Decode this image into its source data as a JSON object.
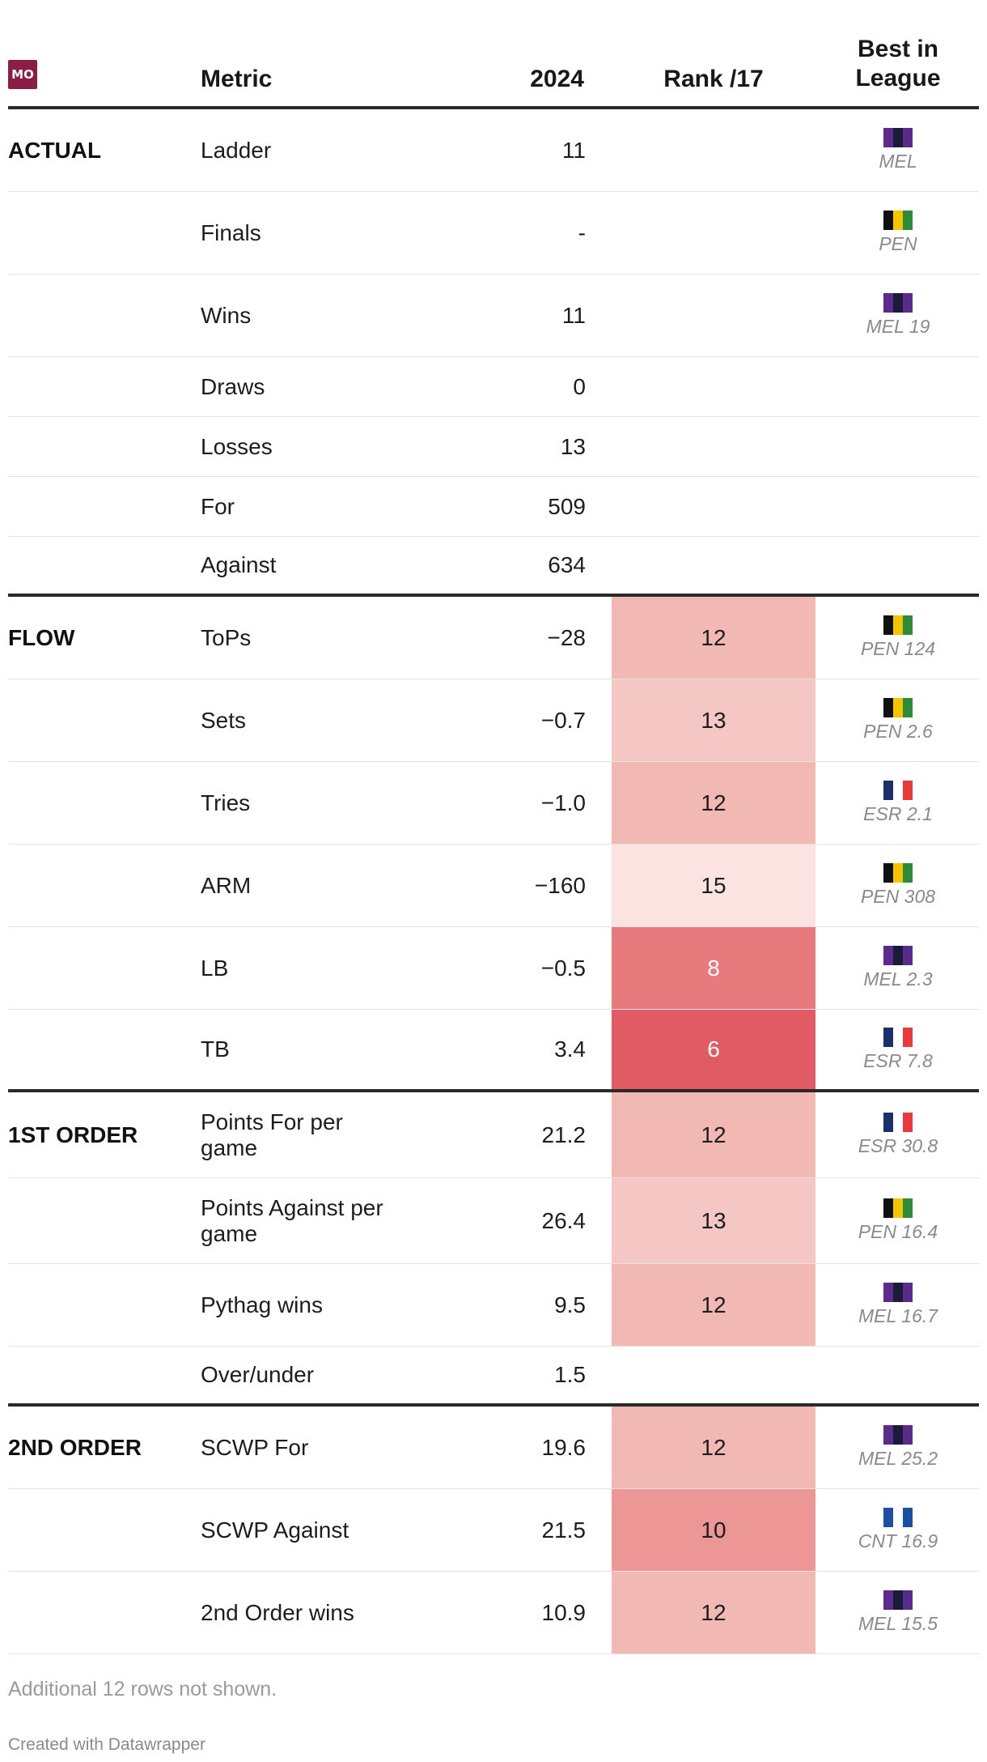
{
  "chart_data": {
    "type": "table",
    "team_logo_text": "MO",
    "columns": {
      "metric": "Metric",
      "year": "2024",
      "rank": "Rank /17",
      "best": "Best in League"
    },
    "rank_scale_colors": {
      "6": "#e05b63",
      "8": "#e77a7c",
      "10": "#ec9795",
      "12": "#f2b8b4",
      "13": "#f5c7c4",
      "15": "#fae3e0"
    },
    "team_colors": {
      "MEL": [
        "#5b2a8a",
        "#1a1a3a",
        "#5b2a8a"
      ],
      "PEN": [
        "#111111",
        "#f4c400",
        "#2e8b3a"
      ],
      "ESR": [
        "#1c2f6b",
        "#ffffff",
        "#e83a3a"
      ],
      "CNT": [
        "#1c4fa0",
        "#ffffff",
        "#1c4fa0"
      ]
    },
    "groups": [
      {
        "name": "ACTUAL",
        "rows": [
          {
            "metric": "Ladder",
            "value": "11",
            "rank": null,
            "best_team": "MEL",
            "best_label": "MEL"
          },
          {
            "metric": "Finals",
            "value": "-",
            "rank": null,
            "best_team": "PEN",
            "best_label": "PEN"
          },
          {
            "metric": "Wins",
            "value": "11",
            "rank": null,
            "best_team": "MEL",
            "best_label": "MEL 19"
          },
          {
            "metric": "Draws",
            "value": "0",
            "rank": null,
            "best_team": null,
            "best_label": ""
          },
          {
            "metric": "Losses",
            "value": "13",
            "rank": null,
            "best_team": null,
            "best_label": ""
          },
          {
            "metric": "For",
            "value": "509",
            "rank": null,
            "best_team": null,
            "best_label": ""
          },
          {
            "metric": "Against",
            "value": "634",
            "rank": null,
            "best_team": null,
            "best_label": ""
          }
        ]
      },
      {
        "name": "FLOW",
        "rows": [
          {
            "metric": "ToPs",
            "value": "−28",
            "rank": 12,
            "best_team": "PEN",
            "best_label": "PEN 124"
          },
          {
            "metric": "Sets",
            "value": "−0.7",
            "rank": 13,
            "best_team": "PEN",
            "best_label": "PEN 2.6"
          },
          {
            "metric": "Tries",
            "value": "−1.0",
            "rank": 12,
            "best_team": "ESR",
            "best_label": "ESR 2.1"
          },
          {
            "metric": "ARM",
            "value": "−160",
            "rank": 15,
            "best_team": "PEN",
            "best_label": "PEN 308"
          },
          {
            "metric": "LB",
            "value": "−0.5",
            "rank": 8,
            "best_team": "MEL",
            "best_label": "MEL 2.3"
          },
          {
            "metric": "TB",
            "value": "3.4",
            "rank": 6,
            "best_team": "ESR",
            "best_label": "ESR 7.8"
          }
        ]
      },
      {
        "name": "1ST ORDER",
        "rows": [
          {
            "metric": "Points For per game",
            "value": "21.2",
            "rank": 12,
            "best_team": "ESR",
            "best_label": "ESR 30.8"
          },
          {
            "metric": "Points Against per game",
            "value": "26.4",
            "rank": 13,
            "best_team": "PEN",
            "best_label": "PEN 16.4"
          },
          {
            "metric": "Pythag wins",
            "value": "9.5",
            "rank": 12,
            "best_team": "MEL",
            "best_label": "MEL 16.7"
          },
          {
            "metric": "Over/under",
            "value": "1.5",
            "rank": null,
            "best_team": null,
            "best_label": ""
          }
        ]
      },
      {
        "name": "2ND ORDER",
        "rows": [
          {
            "metric": "SCWP For",
            "value": "19.6",
            "rank": 12,
            "best_team": "MEL",
            "best_label": "MEL 25.2"
          },
          {
            "metric": "SCWP Against",
            "value": "21.5",
            "rank": 10,
            "best_team": "CNT",
            "best_label": "CNT 16.9"
          },
          {
            "metric": "2nd Order wins",
            "value": "10.9",
            "rank": 12,
            "best_team": "MEL",
            "best_label": "MEL 15.5"
          }
        ]
      }
    ],
    "notes": "Additional 12 rows not shown.",
    "credit": "Created with Datawrapper"
  }
}
